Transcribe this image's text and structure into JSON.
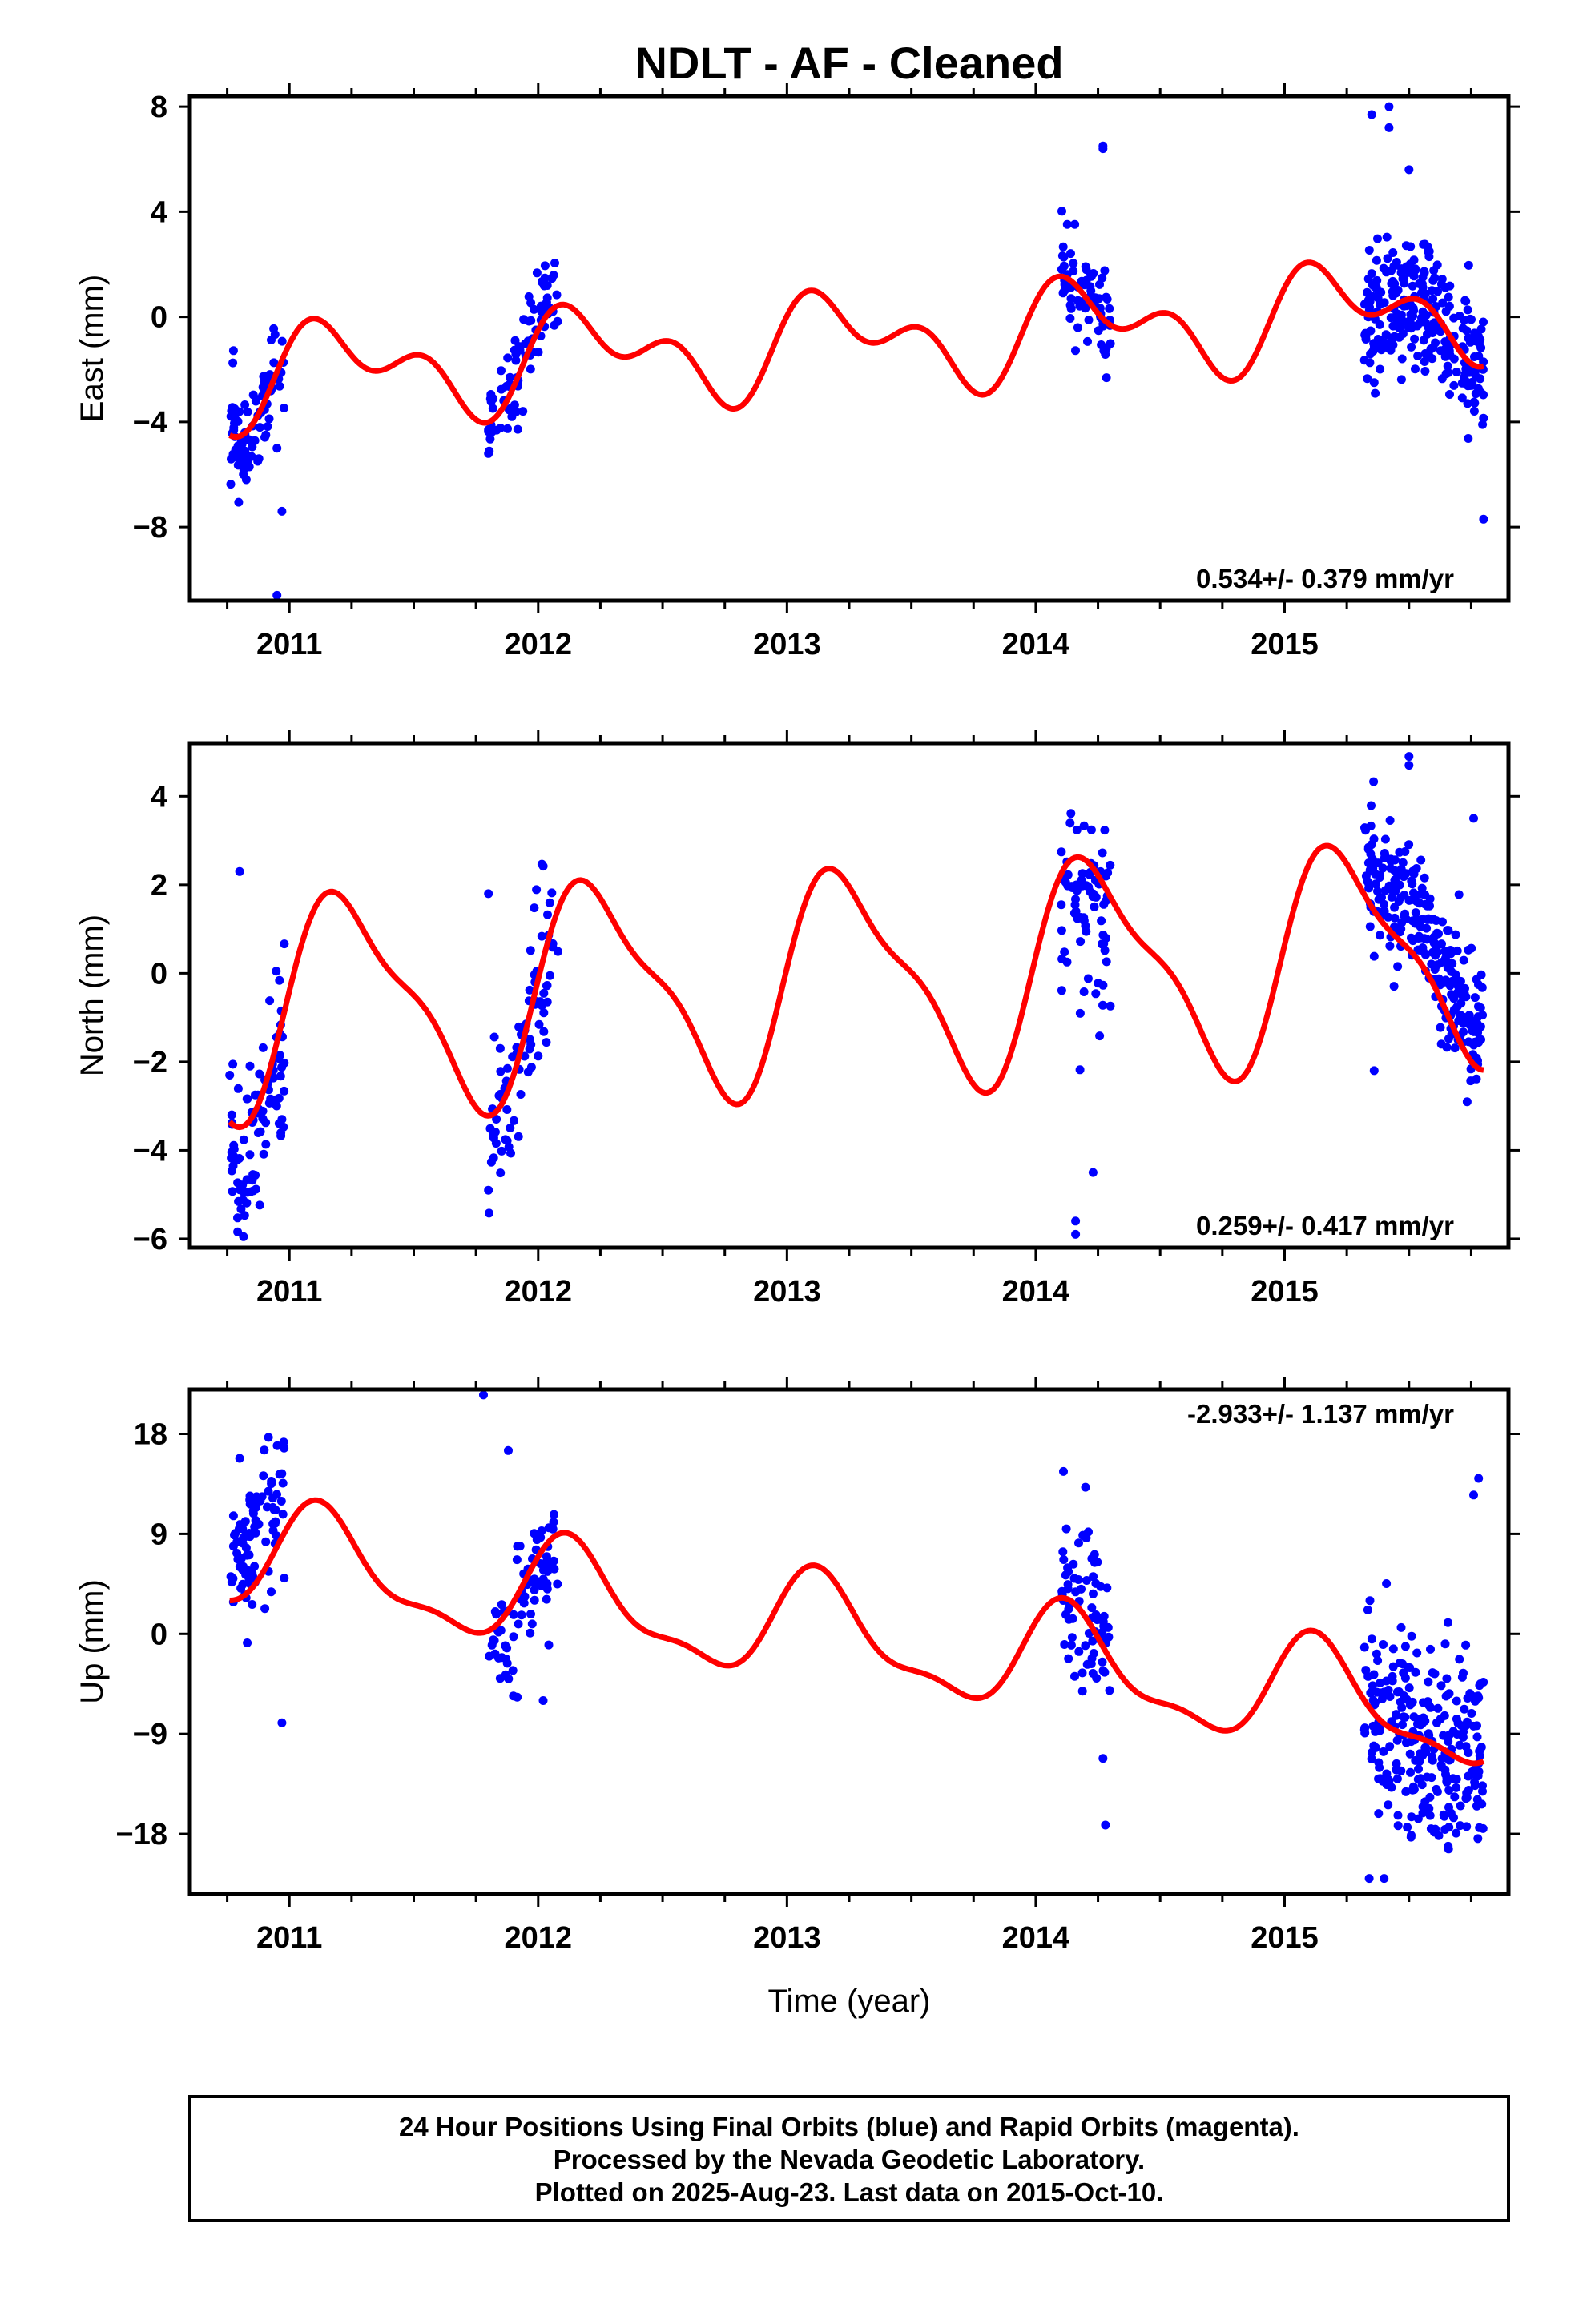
{
  "title": "NDLT  - AF - Cleaned",
  "xlabel": "Time (year)",
  "footer": {
    "lines": [
      "24 Hour Positions Using Final Orbits (blue) and Rapid Orbits (magenta).",
      "Processed by the Nevada Geodetic Laboratory.",
      "Plotted on 2025-Aug-23. Last data on 2015-Oct-10."
    ]
  },
  "colors": {
    "final_orbits": "#0000ff",
    "model": "#ff0000",
    "frame": "#000000"
  },
  "chart_data": [
    {
      "type": "scatter",
      "ylabel": "East (mm)",
      "rate_label": "0.534+/- 0.379 mm/yr",
      "rate_position": "bottom-right",
      "xlim": [
        2010.6,
        2015.9
      ],
      "ylim": [
        -10.8,
        8.4
      ],
      "yticks": [
        8,
        4,
        0,
        -4,
        -8
      ],
      "ytick_labels": [
        "8",
        "4",
        "0",
        "−4",
        "−8"
      ],
      "xticks": [
        2011,
        2012,
        2013,
        2014,
        2015
      ],
      "xtick_labels": [
        "2011",
        "2012",
        "2013",
        "2014",
        "2015"
      ],
      "model": {
        "seed": 11,
        "ampA": 1.4,
        "ampS": 1.1,
        "phaseA": 0.25,
        "phaseS": 0.8,
        "slope": 0.534,
        "intercept": -1.1,
        "ref": 2013.0,
        "windows": [
          [
            2010.76,
            2010.98,
            1.2,
            -0.1
          ],
          [
            2011.8,
            2012.08,
            0.9,
            0.3
          ],
          [
            2014.1,
            2014.3,
            0.6,
            0.1
          ],
          [
            2015.32,
            2015.8,
            1.6,
            0.0
          ]
        ]
      },
      "clusters": [
        {
          "x0": 2010.76,
          "x1": 2010.98,
          "n": 90,
          "spread": 0.95
        },
        {
          "x0": 2011.8,
          "x1": 2012.08,
          "n": 80,
          "spread": 0.9
        },
        {
          "x0": 2014.1,
          "x1": 2014.3,
          "n": 75,
          "spread": 1.2
        },
        {
          "x0": 2015.32,
          "x1": 2015.8,
          "n": 260,
          "spread": 1.3
        }
      ],
      "outliers": [
        [
          2010.78,
          -5.2
        ],
        [
          2010.8,
          -5.2
        ],
        [
          2010.95,
          -5.0
        ],
        [
          2010.97,
          -7.4
        ],
        [
          2010.95,
          -10.6
        ],
        [
          2011.8,
          -5.2
        ],
        [
          2011.8,
          -4.3
        ],
        [
          2014.27,
          6.5
        ],
        [
          2014.27,
          6.4
        ],
        [
          2015.35,
          7.7
        ],
        [
          2015.42,
          8.0
        ],
        [
          2015.42,
          7.2
        ],
        [
          2015.5,
          5.6
        ],
        [
          2015.8,
          -7.7
        ],
        [
          2015.36,
          -2.5
        ]
      ]
    },
    {
      "type": "scatter",
      "ylabel": "North (mm)",
      "rate_label": "0.259+/- 0.417 mm/yr",
      "rate_position": "bottom-right",
      "xlim": [
        2010.6,
        2015.9
      ],
      "ylim": [
        -6.2,
        5.2
      ],
      "yticks": [
        4,
        2,
        0,
        -2,
        -4,
        -6
      ],
      "ytick_labels": [
        "4",
        "2",
        "0",
        "−2",
        "−4",
        "−6"
      ],
      "xticks": [
        2011,
        2012,
        2013,
        2014,
        2015
      ],
      "xtick_labels": [
        "2011",
        "2012",
        "2013",
        "2014",
        "2015"
      ],
      "model": {
        "seed": 23,
        "ampA": 2.3,
        "ampS": 0.7,
        "phaseA": 0.05,
        "phaseS": 0.3,
        "slope": 0.259,
        "intercept": -0.2,
        "ref": 2013.0,
        "windows": [
          [
            2010.76,
            2010.98,
            1.4,
            -0.5
          ],
          [
            2011.8,
            2012.08,
            1.0,
            -0.2
          ],
          [
            2014.1,
            2014.3,
            1.2,
            -0.8
          ],
          [
            2015.32,
            2015.8,
            1.5,
            0.9
          ]
        ]
      },
      "clusters": [
        {
          "x0": 2010.76,
          "x1": 2010.98,
          "n": 90,
          "spread": 0.9
        },
        {
          "x0": 2011.8,
          "x1": 2012.08,
          "n": 80,
          "spread": 0.95
        },
        {
          "x0": 2014.1,
          "x1": 2014.3,
          "n": 75,
          "spread": 1.1
        },
        {
          "x0": 2015.32,
          "x1": 2015.8,
          "n": 260,
          "spread": 0.7
        }
      ],
      "outliers": [
        [
          2010.76,
          -2.3
        ],
        [
          2010.8,
          2.3
        ],
        [
          2011.8,
          -4.9
        ],
        [
          2011.8,
          1.8
        ],
        [
          2014.16,
          -5.6
        ],
        [
          2014.16,
          -5.9
        ],
        [
          2014.23,
          -4.5
        ],
        [
          2015.5,
          4.9
        ],
        [
          2015.5,
          4.7
        ],
        [
          2015.76,
          3.5
        ],
        [
          2015.36,
          -2.2
        ],
        [
          2010.97,
          -3.3
        ]
      ]
    },
    {
      "type": "scatter",
      "ylabel": "Up (mm)",
      "rate_label": "-2.933+/- 1.137 mm/yr",
      "rate_position": "top-right",
      "xlim": [
        2010.6,
        2015.9
      ],
      "ylim": [
        -23.4,
        22.0
      ],
      "yticks": [
        18,
        9,
        0,
        -9,
        -18
      ],
      "ytick_labels": [
        "18",
        "9",
        "0",
        "−9",
        "−18"
      ],
      "xticks": [
        2011,
        2012,
        2013,
        2014,
        2015
      ],
      "xtick_labels": [
        "2011",
        "2012",
        "2013",
        "2014",
        "2015"
      ],
      "model": {
        "seed": 37,
        "ampA": 4.5,
        "ampS": 1.6,
        "phaseA": 0.7,
        "phaseS": 0.4,
        "slope": -2.933,
        "intercept": 0.5,
        "ref": 2013.0,
        "windows": [
          [
            2010.76,
            2010.98,
            3.0,
            3.5
          ],
          [
            2011.8,
            2012.08,
            3.0,
            -2.0
          ],
          [
            2014.1,
            2014.3,
            2.5,
            0.5
          ],
          [
            2015.32,
            2015.8,
            3.0,
            0.0
          ]
        ]
      },
      "clusters": [
        {
          "x0": 2010.76,
          "x1": 2010.98,
          "n": 90,
          "spread": 3.2
        },
        {
          "x0": 2011.8,
          "x1": 2012.08,
          "n": 80,
          "spread": 3.0
        },
        {
          "x0": 2014.1,
          "x1": 2014.3,
          "n": 75,
          "spread": 3.6
        },
        {
          "x0": 2015.32,
          "x1": 2015.8,
          "n": 260,
          "spread": 4.2
        }
      ],
      "outliers": [
        [
          2011.78,
          21.5
        ],
        [
          2011.88,
          16.5
        ],
        [
          2010.8,
          15.8
        ],
        [
          2010.97,
          -8.0
        ],
        [
          2014.2,
          13.2
        ],
        [
          2014.28,
          -17.2
        ],
        [
          2014.27,
          -11.2
        ],
        [
          2015.34,
          -22.0
        ],
        [
          2015.4,
          -22.0
        ],
        [
          2015.78,
          14.0
        ],
        [
          2015.76,
          12.5
        ],
        [
          2012.02,
          -6.0
        ]
      ]
    }
  ]
}
